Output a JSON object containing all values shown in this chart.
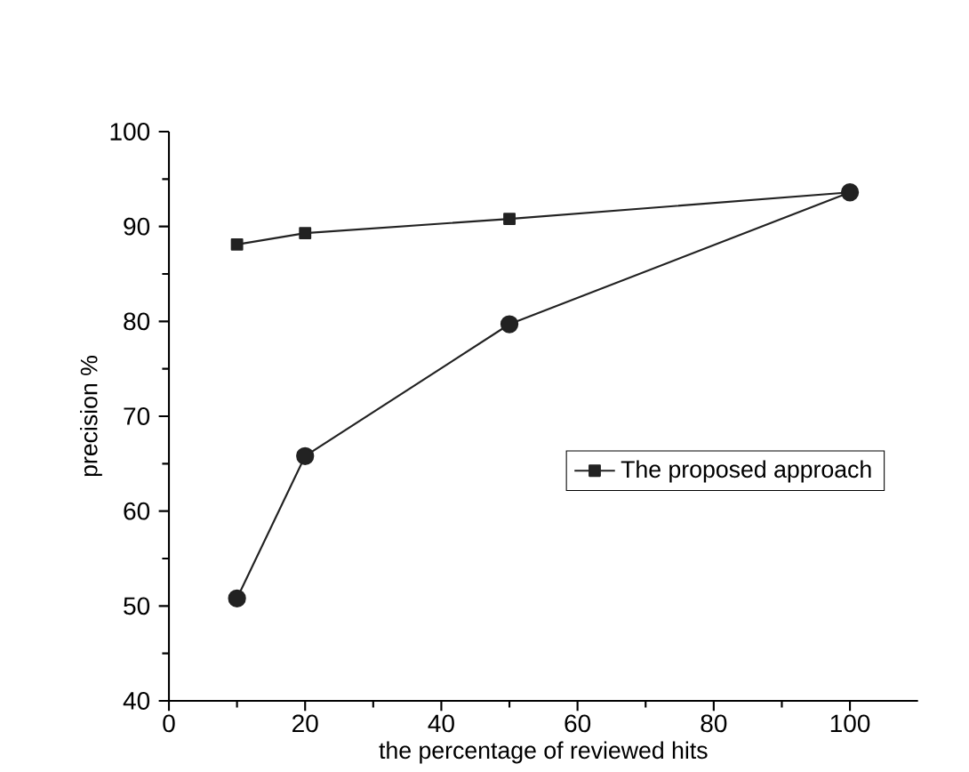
{
  "chart_data": {
    "type": "line",
    "xlabel": "the percentage of reviewed hits",
    "ylabel": "precision %",
    "x": [
      10,
      20,
      50,
      100
    ],
    "series": [
      {
        "name": "The proposed approach",
        "color": "#222222",
        "marker": "square",
        "values": [
          88.1,
          89.3,
          90.8,
          93.6
        ]
      },
      {
        "color": "#222222",
        "marker": "circle",
        "values": [
          50.8,
          65.8,
          79.7,
          93.6
        ]
      }
    ],
    "xlim": [
      0,
      110
    ],
    "ylim": [
      40,
      100
    ],
    "xticks": [
      0,
      20,
      40,
      60,
      80,
      100
    ],
    "yticks": [
      40,
      50,
      60,
      70,
      80,
      90,
      100
    ],
    "grid": false,
    "legend": "right",
    "line_style": "solid"
  }
}
